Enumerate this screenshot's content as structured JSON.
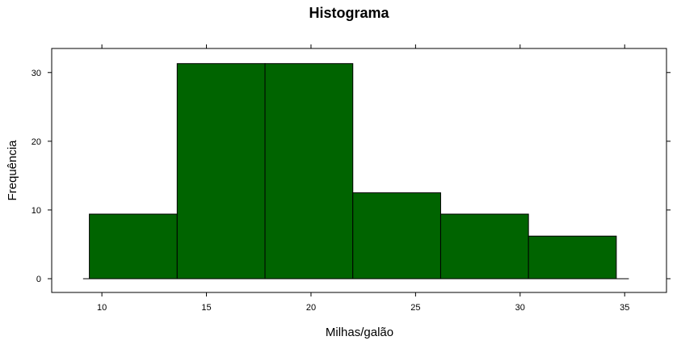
{
  "chart_data": {
    "type": "bar",
    "title": "Histograma",
    "xlabel": "Milhas/galão",
    "ylabel": "Frequência",
    "bin_edges": [
      9.4,
      13.6,
      17.8,
      22.0,
      26.2,
      30.4,
      34.6
    ],
    "values": [
      9.4,
      31.3,
      31.3,
      12.5,
      9.4,
      6.2
    ],
    "xlim": [
      7.6,
      37.0
    ],
    "ylim": [
      -2.0,
      33.5
    ],
    "x_ticks": [
      10,
      15,
      20,
      25,
      30,
      35
    ],
    "y_ticks": [
      0,
      10,
      20,
      30
    ],
    "baseline": [
      9.1,
      35.2
    ],
    "bar_color": "#006400",
    "bar_edge_color": "#000000"
  }
}
